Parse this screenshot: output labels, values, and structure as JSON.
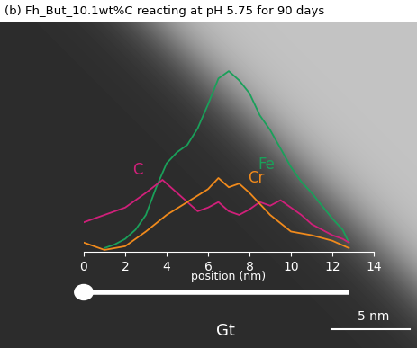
{
  "chart_data": {
    "type": "line",
    "title": "(b) Fh_But_10.1wt%C reacting at pH 5.75 for 90 days",
    "x_label": "position (nm)",
    "xlim": [
      0,
      14
    ],
    "xticks": [
      0,
      2,
      4,
      6,
      8,
      10,
      12,
      14
    ],
    "ylim": [
      0,
      100
    ],
    "tick_labels": "x",
    "series": [
      {
        "name": "Fe",
        "color": "#1aa05a",
        "x": [
          1,
          1.5,
          2,
          2.5,
          3,
          3.5,
          4,
          4.5,
          5,
          5.5,
          6,
          6.5,
          7,
          7.5,
          8,
          8.5,
          9,
          9.5,
          10,
          10.5,
          11,
          11.5,
          12,
          12.5,
          12.8
        ],
        "values": [
          2,
          4,
          7,
          12,
          20,
          35,
          48,
          54,
          58,
          67,
          80,
          94,
          98,
          93,
          86,
          74,
          66,
          56,
          46,
          38,
          32,
          25,
          18,
          12,
          5
        ]
      },
      {
        "name": "C",
        "color": "#d0207a",
        "x": [
          0,
          1,
          2,
          3,
          3.8,
          4.5,
          5,
          5.5,
          6,
          6.5,
          7,
          7.5,
          8,
          8.5,
          9,
          9.5,
          10,
          10.5,
          11,
          11.5,
          12,
          12.5,
          12.8
        ],
        "values": [
          16,
          20,
          24,
          32,
          39,
          32,
          27,
          22,
          24,
          27,
          22,
          20,
          23,
          27,
          25,
          28,
          24,
          20,
          15,
          12,
          9,
          7,
          5
        ]
      },
      {
        "name": "Cr",
        "color": "#f08a1c",
        "x": [
          0,
          1,
          2,
          3,
          4,
          5,
          6,
          6.5,
          7,
          7.5,
          8,
          9,
          10,
          11,
          12,
          12.8
        ],
        "values": [
          5,
          1,
          3,
          11,
          20,
          27,
          34,
          40,
          35,
          37,
          32,
          20,
          11,
          9,
          6,
          2
        ]
      }
    ],
    "annotations": [
      "Gt",
      "5 nm"
    ]
  }
}
